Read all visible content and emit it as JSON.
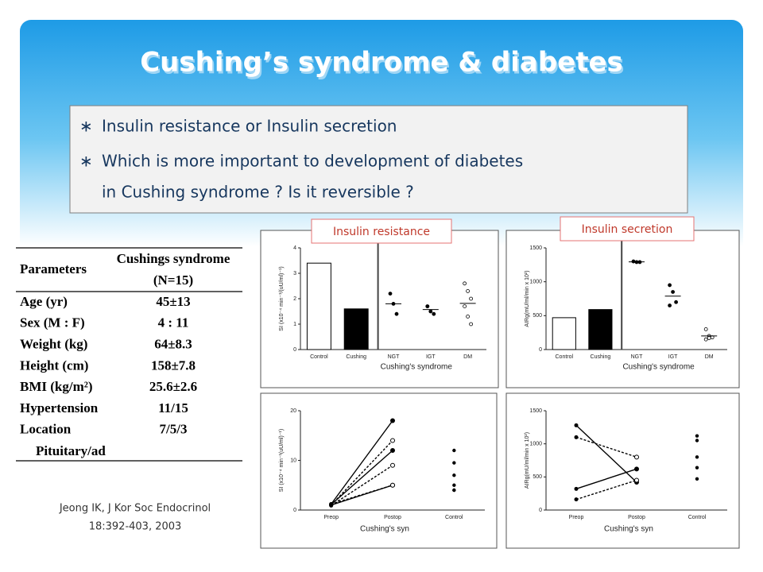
{
  "header": {
    "title": "Cushing’s syndrome & diabetes"
  },
  "bullets": [
    "Insulin resistance or Insulin secretion",
    "Which is more important to development of diabetes in Cushing syndrome ? Is it reversible ?"
  ],
  "bullet_symbol": "∗",
  "table": {
    "header": [
      "Parameters",
      "Cushings syndrome",
      "(N=15)"
    ],
    "rows": [
      [
        "Age (yr)",
        "45±13"
      ],
      [
        "Sex (M : F)",
        "4  :  11"
      ],
      [
        "Weight (kg)",
        "64±8.3"
      ],
      [
        "Height (cm)",
        "158±7.8"
      ],
      [
        "BMI (kg/m²)",
        "25.6±2.6"
      ],
      [
        "Hypertension",
        "11/15"
      ],
      [
        "Location",
        "7/5/3"
      ]
    ],
    "footer_row": "Pituitary/ad"
  },
  "citation": [
    "Jeong IK, J Kor Soc Endocrinol",
    "18:392-403, 2003"
  ],
  "figure_labels": [
    "Insulin resistance",
    "Insulin secretion"
  ],
  "figures": [
    {
      "ylabel": "SI (x10⁻⁴ min⁻¹/(uU/ml)⁻¹)",
      "ylim": [
        0,
        4
      ],
      "yticks": [
        0,
        1,
        2,
        3,
        4
      ],
      "categories": [
        "Control",
        "Cushing",
        "NGT",
        "IGT",
        "DM"
      ],
      "group_label": "Cushing's syndrome",
      "bars": [
        3.4,
        1.6
      ],
      "scatter": [
        [
          2.2,
          1.8,
          1.4
        ],
        [
          1.7,
          1.5,
          1.4,
          1.7
        ],
        [
          2.6,
          2.3,
          2.0,
          1.7,
          1.3,
          1.0
        ]
      ]
    },
    {
      "ylabel": "AIRg(mU/ml/min x 10²)",
      "ylim": [
        0,
        1500
      ],
      "yticks": [
        0,
        500,
        1000,
        1500
      ],
      "categories": [
        "Control",
        "Cushing",
        "NGT",
        "IGT",
        "DM"
      ],
      "group_label": "Cushing's syndrome",
      "bars": [
        470,
        590
      ],
      "scatter": [
        [
          1300,
          1290,
          1290
        ],
        [
          950,
          850,
          700,
          650
        ],
        [
          300,
          200,
          180,
          150,
          170
        ]
      ]
    },
    {
      "ylabel": "SI (x10⁻⁴ min⁻¹(uU/ml)⁻¹)",
      "ylim": [
        0,
        20
      ],
      "yticks": [
        0,
        10,
        20
      ],
      "categories": [
        "Preop",
        "Postop",
        "Control"
      ],
      "x_label": "Cushing's syn",
      "preop": [
        1.2,
        1.0,
        1.1,
        0.9,
        1.0,
        1.2
      ],
      "postop": [
        18,
        14,
        12,
        9,
        5,
        5
      ],
      "control": [
        12,
        9.5,
        7,
        5,
        4,
        4
      ]
    },
    {
      "ylabel": "AIRg(mU/ml/min x 10²)",
      "ylim": [
        0,
        1500
      ],
      "yticks": [
        0,
        500,
        1000,
        1500
      ],
      "categories": [
        "Preop",
        "Postop",
        "Control"
      ],
      "x_label": "Cushing's syn",
      "preop": [
        1280,
        1100,
        320,
        160
      ],
      "postop": [
        420,
        800,
        620,
        450
      ],
      "control": [
        1120,
        1050,
        800,
        640,
        470
      ]
    }
  ]
}
